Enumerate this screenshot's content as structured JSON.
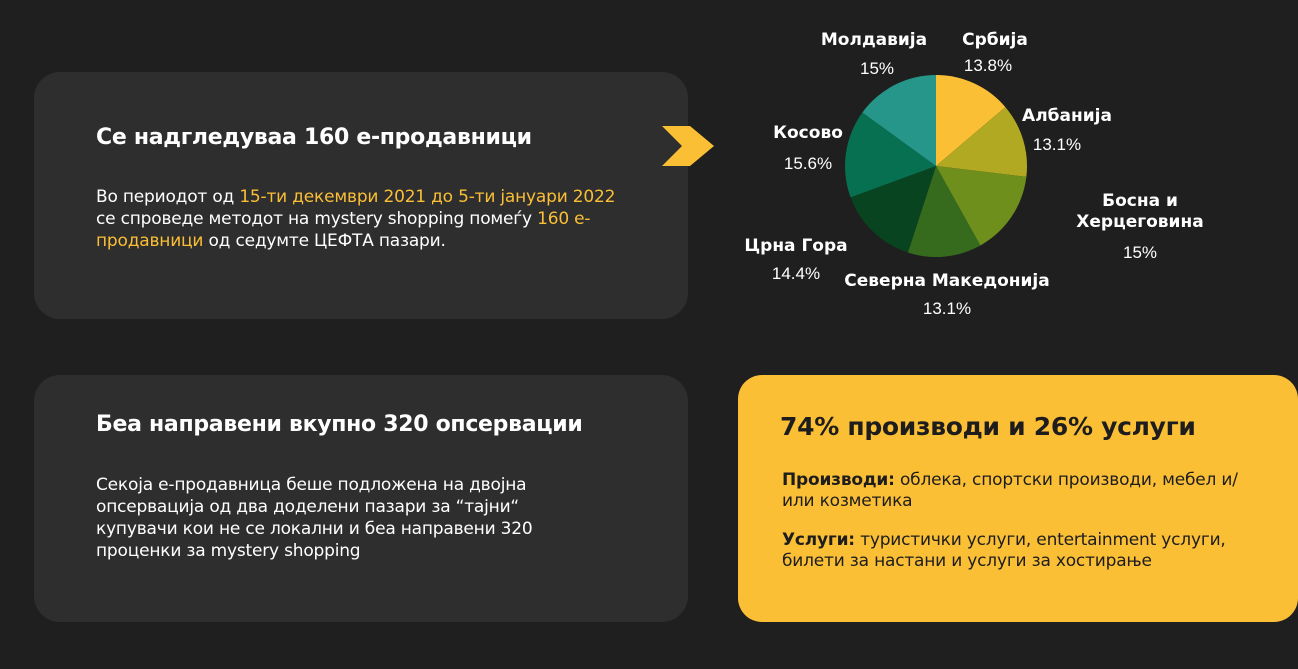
{
  "card1": {
    "title": "Се надгледуваа 160 е-продавници",
    "body_pre": "Во периодот од ",
    "body_hl1": "15-ти декември 2021 до 5-ти јануари 2022",
    "body_mid": " се спроведе методот на mystery shopping помеѓу ",
    "body_hl2": "160 е-продавници",
    "body_post": " од седумте ЦЕФТА пазари."
  },
  "card2": {
    "title": "Беа направени вкупно 320 опсервации",
    "body": "Секоја е-продавница беше подложена на двојна опсервација од два доделени пазари за “тајни“ купувачи кои не се локални и беа направени 320 проценки за mystery shopping"
  },
  "yellow_card": {
    "title": "74% производи и 26% услуги",
    "products_label": "Производи:",
    "products_text": " облека, спортски производи, мебел и/или козметика",
    "services_label": "Услуги:",
    "services_text": " туристички услуги, entertainment услуги, билети за настани и услуги за хостирање"
  },
  "colors": {
    "accent": "#fbbf36",
    "background": "#1f1f1f",
    "card": "#2e2e2e"
  },
  "chevron_icon": "chevron-right-icon",
  "chart_data": {
    "type": "pie",
    "slices": [
      {
        "label": "Србија",
        "value": 13.8,
        "pct_text": "13.8%",
        "color": "#fbbf36"
      },
      {
        "label": "Албанија",
        "value": 13.1,
        "pct_text": "13.1%",
        "color": "#b2a922"
      },
      {
        "label": "Босна и Херцеговина",
        "value": 15.0,
        "pct_text": "15%",
        "color": "#6f8f1d"
      },
      {
        "label": "Северна Македонија",
        "value": 13.1,
        "pct_text": "13.1%",
        "color": "#366b1e"
      },
      {
        "label": "Црна Гора",
        "value": 14.4,
        "pct_text": "14.4%",
        "color": "#07441f"
      },
      {
        "label": "Косово",
        "value": 15.6,
        "pct_text": "15.6%",
        "color": "#077050"
      },
      {
        "label": "Молдавија",
        "value": 15.0,
        "pct_text": "15%",
        "color": "#26968a"
      }
    ]
  }
}
